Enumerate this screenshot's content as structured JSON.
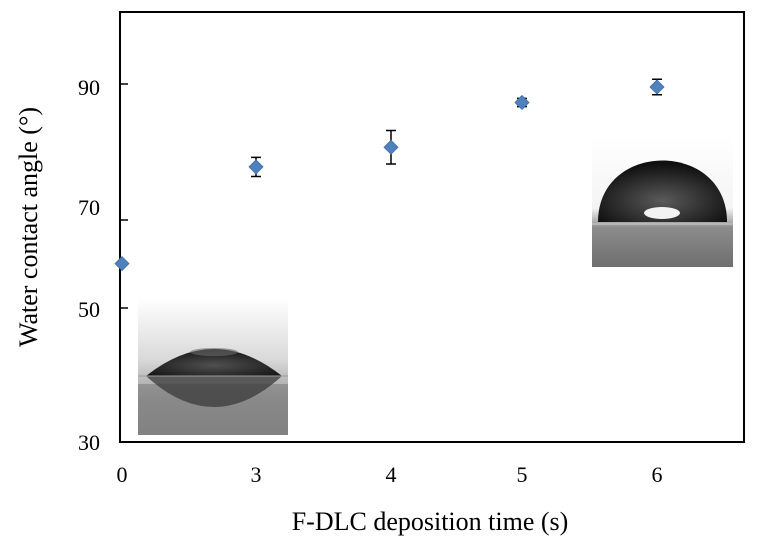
{
  "chart_data": {
    "type": "scatter",
    "title": "",
    "xlabel": "F-DLC deposition time (s)",
    "ylabel": "Water contact angle (°)",
    "categories": [
      "0",
      "3",
      "4",
      "5",
      "6"
    ],
    "ylim": [
      30,
      102
    ],
    "yticks": [
      "30",
      "50",
      "70",
      "90"
    ],
    "grid": false,
    "legend": "none",
    "series": [
      {
        "color": "#4f81bd",
        "marker": "diamond",
        "values": [
          59.9,
          76.1,
          79.4,
          86.9,
          89.5
        ],
        "error": [
          0,
          1.6,
          2.8,
          0.7,
          1.3
        ]
      }
    ],
    "insets": [
      {
        "icon": "water-droplet-photo-low-angle",
        "near_category": "0"
      },
      {
        "icon": "water-droplet-photo-high-angle",
        "near_category": "6"
      }
    ]
  }
}
